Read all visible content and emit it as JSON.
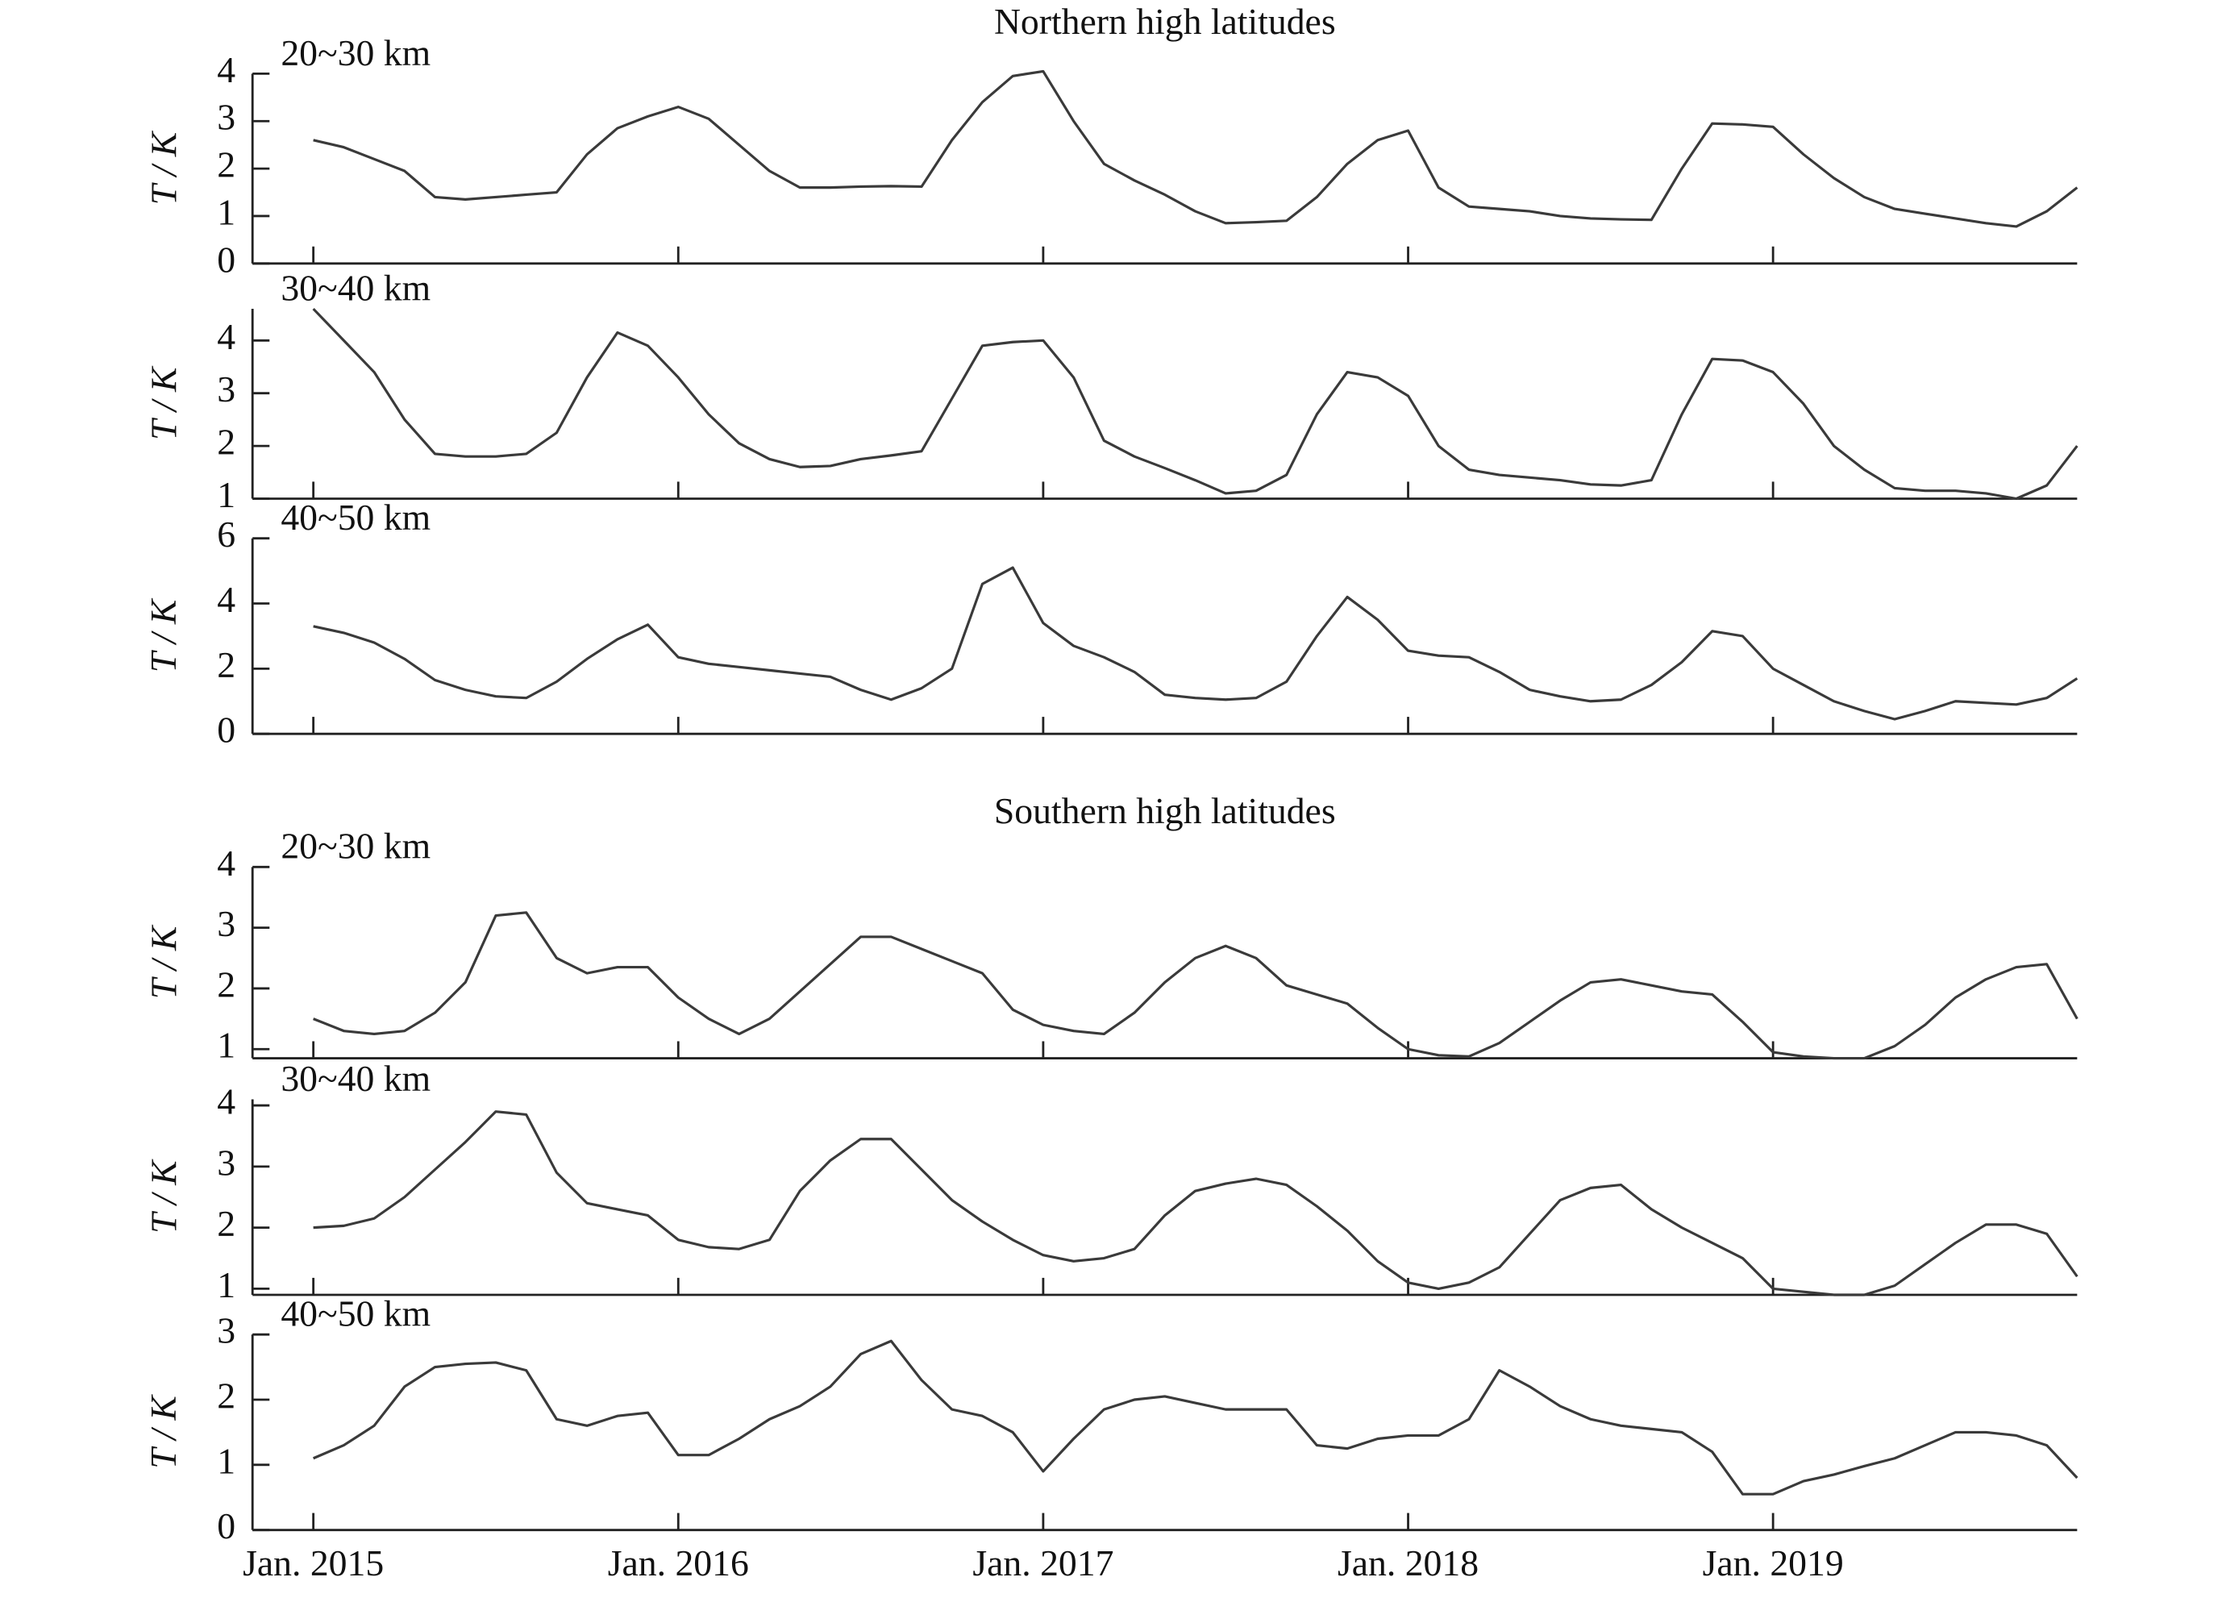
{
  "chart_data": {
    "type": "line",
    "ylabel": "T / K",
    "color": "#3a3a3a",
    "xlim": [
      "2014-11",
      "2019-11"
    ],
    "xticks": [
      {
        "value": "2015-01",
        "label": "Jan. 2015"
      },
      {
        "value": "2016-01",
        "label": "Jan. 2016"
      },
      {
        "value": "2017-01",
        "label": "Jan. 2017"
      },
      {
        "value": "2018-01",
        "label": "Jan. 2018"
      },
      {
        "value": "2019-01",
        "label": "Jan. 2019"
      }
    ],
    "x": [
      "2015-01",
      "2015-02",
      "2015-03",
      "2015-04",
      "2015-05",
      "2015-06",
      "2015-07",
      "2015-08",
      "2015-09",
      "2015-10",
      "2015-11",
      "2015-12",
      "2016-01",
      "2016-02",
      "2016-03",
      "2016-04",
      "2016-05",
      "2016-06",
      "2016-07",
      "2016-08",
      "2016-09",
      "2016-10",
      "2016-11",
      "2016-12",
      "2017-01",
      "2017-02",
      "2017-03",
      "2017-04",
      "2017-05",
      "2017-06",
      "2017-07",
      "2017-08",
      "2017-09",
      "2017-10",
      "2017-11",
      "2017-12",
      "2018-01",
      "2018-02",
      "2018-03",
      "2018-04",
      "2018-05",
      "2018-06",
      "2018-07",
      "2018-08",
      "2018-09",
      "2018-10",
      "2018-11",
      "2018-12",
      "2019-01",
      "2019-02",
      "2019-03",
      "2019-04",
      "2019-05",
      "2019-06",
      "2019-07",
      "2019-08",
      "2019-09",
      "2019-10",
      "2019-11"
    ],
    "groups": [
      {
        "title": "Northern high latitudes",
        "panels": [
          {
            "label": "20~30 km",
            "ylim": [
              0,
              4
            ],
            "yticks": [
              0,
              1,
              2,
              3,
              4
            ],
            "values": [
              2.6,
              2.45,
              2.2,
              1.95,
              1.4,
              1.35,
              1.4,
              1.45,
              1.5,
              2.3,
              2.85,
              3.1,
              3.3,
              3.05,
              2.5,
              1.95,
              1.6,
              1.6,
              1.62,
              1.63,
              1.62,
              2.6,
              3.4,
              3.95,
              4.05,
              3.0,
              2.1,
              1.75,
              1.45,
              1.1,
              0.85,
              0.87,
              0.9,
              1.4,
              2.1,
              2.6,
              2.8,
              1.6,
              1.2,
              1.15,
              1.1,
              1.0,
              0.95,
              0.93,
              0.92,
              2.0,
              2.95,
              2.93,
              2.88,
              2.3,
              1.8,
              1.4,
              1.15,
              1.05,
              0.95,
              0.85,
              0.78,
              1.1,
              1.6
            ]
          },
          {
            "label": "30~40 km",
            "ylim": [
              1,
              4.6
            ],
            "yticks": [
              1,
              2,
              3,
              4
            ],
            "values": [
              4.6,
              4.0,
              3.4,
              2.5,
              1.85,
              1.8,
              1.8,
              1.85,
              2.25,
              3.3,
              4.15,
              3.9,
              3.3,
              2.6,
              2.05,
              1.75,
              1.6,
              1.62,
              1.75,
              1.82,
              1.9,
              2.9,
              3.9,
              3.97,
              4.0,
              3.3,
              2.1,
              1.8,
              1.58,
              1.35,
              1.1,
              1.15,
              1.45,
              2.6,
              3.4,
              3.3,
              2.95,
              2.0,
              1.55,
              1.45,
              1.4,
              1.35,
              1.27,
              1.25,
              1.35,
              2.6,
              3.65,
              3.62,
              3.4,
              2.8,
              2.0,
              1.55,
              1.2,
              1.15,
              1.15,
              1.1,
              1.0,
              1.25,
              2.0
            ]
          },
          {
            "label": "40~50 km",
            "ylim": [
              0,
              6
            ],
            "yticks": [
              0,
              2,
              4,
              6
            ],
            "values": [
              3.3,
              3.1,
              2.8,
              2.3,
              1.65,
              1.35,
              1.15,
              1.1,
              1.6,
              2.3,
              2.9,
              3.35,
              2.35,
              2.15,
              2.05,
              1.95,
              1.85,
              1.75,
              1.35,
              1.05,
              1.4,
              2.0,
              4.6,
              5.1,
              3.4,
              2.7,
              2.35,
              1.9,
              1.2,
              1.1,
              1.05,
              1.1,
              1.6,
              3.0,
              4.2,
              3.5,
              2.55,
              2.4,
              2.35,
              1.9,
              1.35,
              1.15,
              1.0,
              1.05,
              1.5,
              2.2,
              3.15,
              3.0,
              2.0,
              1.5,
              1.0,
              0.7,
              0.45,
              0.7,
              1.0,
              0.95,
              0.9,
              1.1,
              1.7
            ]
          }
        ]
      },
      {
        "title": "Southern high latitudes",
        "panels": [
          {
            "label": "20~30 km",
            "ylim": [
              0.85,
              4
            ],
            "yticks": [
              1,
              2,
              3,
              4
            ],
            "values": [
              1.5,
              1.3,
              1.25,
              1.3,
              1.6,
              2.1,
              3.2,
              3.25,
              2.5,
              2.25,
              2.35,
              2.35,
              1.85,
              1.5,
              1.25,
              1.5,
              1.95,
              2.4,
              2.85,
              2.85,
              2.65,
              2.45,
              2.25,
              1.65,
              1.4,
              1.3,
              1.25,
              1.6,
              2.1,
              2.5,
              2.7,
              2.5,
              2.05,
              1.9,
              1.75,
              1.35,
              1.0,
              0.9,
              0.88,
              1.1,
              1.45,
              1.8,
              2.1,
              2.15,
              2.05,
              1.95,
              1.9,
              1.45,
              0.95,
              0.88,
              0.85,
              0.85,
              1.05,
              1.4,
              1.85,
              2.15,
              2.35,
              2.4,
              1.5
            ]
          },
          {
            "label": "30~40 km",
            "ylim": [
              0.9,
              4.1
            ],
            "yticks": [
              1,
              2,
              3,
              4
            ],
            "values": [
              2.0,
              2.03,
              2.15,
              2.5,
              2.95,
              3.4,
              3.9,
              3.85,
              2.9,
              2.4,
              2.3,
              2.2,
              1.8,
              1.68,
              1.65,
              1.8,
              2.6,
              3.1,
              3.45,
              3.45,
              2.95,
              2.45,
              2.1,
              1.8,
              1.55,
              1.45,
              1.5,
              1.65,
              2.2,
              2.6,
              2.72,
              2.8,
              2.7,
              2.35,
              1.95,
              1.45,
              1.1,
              1.0,
              1.1,
              1.35,
              1.9,
              2.45,
              2.65,
              2.7,
              2.3,
              2.0,
              1.75,
              1.5,
              1.0,
              0.95,
              0.9,
              0.9,
              1.05,
              1.4,
              1.75,
              2.05,
              2.05,
              1.9,
              1.2
            ]
          },
          {
            "label": "40~50 km",
            "ylim": [
              0,
              3
            ],
            "yticks": [
              0,
              1,
              2,
              3
            ],
            "values": [
              1.1,
              1.3,
              1.6,
              2.2,
              2.5,
              2.55,
              2.57,
              2.45,
              1.7,
              1.6,
              1.75,
              1.8,
              1.15,
              1.15,
              1.4,
              1.7,
              1.9,
              2.2,
              2.7,
              2.9,
              2.3,
              1.85,
              1.75,
              1.5,
              0.9,
              1.4,
              1.85,
              2.0,
              2.05,
              1.95,
              1.85,
              1.85,
              1.85,
              1.3,
              1.25,
              1.4,
              1.45,
              1.45,
              1.7,
              2.45,
              2.2,
              1.9,
              1.7,
              1.6,
              1.55,
              1.5,
              1.2,
              0.55,
              0.55,
              0.75,
              0.85,
              0.98,
              1.1,
              1.3,
              1.5,
              1.5,
              1.45,
              1.3,
              0.8
            ]
          }
        ]
      }
    ]
  }
}
